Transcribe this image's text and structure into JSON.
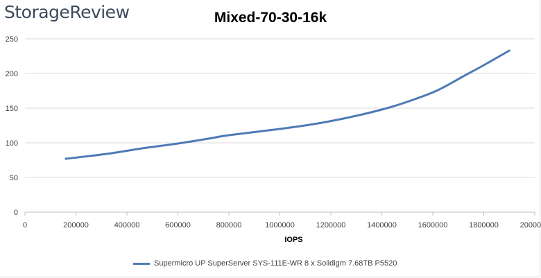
{
  "logo": {
    "text": "StorageReview"
  },
  "chart_data": {
    "type": "line",
    "title": "Mixed-70-30-16k",
    "xlabel": "IOPS",
    "ylabel": "",
    "xlim": [
      0,
      2000000
    ],
    "ylim": [
      0,
      250
    ],
    "xticks": [
      0,
      200000,
      400000,
      600000,
      800000,
      1000000,
      1200000,
      1400000,
      1600000,
      1800000,
      2000000
    ],
    "xtick_labels": [
      "0",
      "200000",
      "400000",
      "600000",
      "800000",
      "1000000",
      "1200000",
      "1400000",
      "1600000",
      "1800000",
      "2000000"
    ],
    "yticks": [
      0,
      50,
      100,
      150,
      200,
      250
    ],
    "ytick_labels": [
      "0",
      "50",
      "100",
      "150",
      "200",
      "250"
    ],
    "grid": "horizontal",
    "legend_position": "bottom",
    "series": [
      {
        "name": "Supermicro UP SuperServer SYS-111E-WR 8 x Solidigm 7.68TB P5520",
        "color": "#4e7ab5",
        "x": [
          160000,
          320000,
          460000,
          600000,
          720000,
          800000,
          1000000,
          1150000,
          1300000,
          1430000,
          1530000,
          1620000,
          1720000,
          1800000,
          1900000
        ],
        "y": [
          77,
          84,
          92,
          99,
          106,
          111,
          120,
          128,
          139,
          151,
          163,
          176,
          196,
          212,
          233
        ]
      }
    ]
  }
}
